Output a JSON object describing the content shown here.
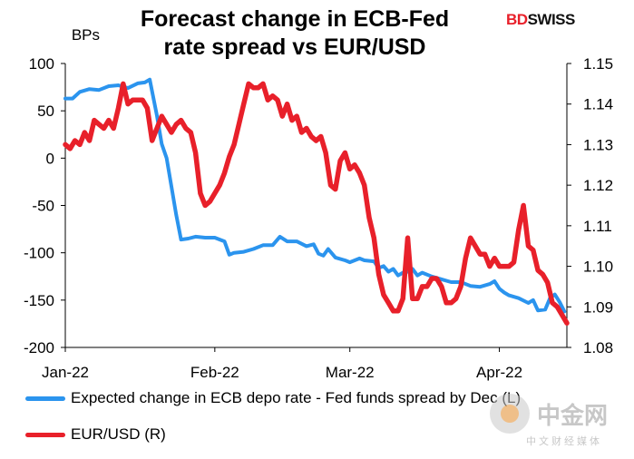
{
  "brand": {
    "logo_bd": "BD",
    "logo_swiss": "SWISS"
  },
  "watermark": {
    "main": "中金网",
    "sub": "中文财经媒体"
  },
  "chart_data": {
    "type": "line",
    "title_lines": [
      "Forecast change in ECB-Fed",
      "rate spread vs EUR/USD"
    ],
    "y_left": {
      "label": "BPs",
      "min": -200,
      "max": 100,
      "ticks": [
        100,
        50,
        0,
        -50,
        -100,
        -150,
        -200
      ]
    },
    "y_right": {
      "min": 1.08,
      "max": 1.15,
      "ticks": [
        "1.15",
        "1.14",
        "1.13",
        "1.12",
        "1.11",
        "1.10",
        "1.09",
        "1.08"
      ]
    },
    "x_axis": {
      "min": 0,
      "max": 104,
      "ticks": [
        {
          "label": "Jan-22",
          "day": 0
        },
        {
          "label": "Feb-22",
          "day": 31
        },
        {
          "label": "Mar-22",
          "day": 59
        },
        {
          "label": "Apr-22",
          "day": 90
        }
      ]
    },
    "series": [
      {
        "name": "Expected change in ECB depo rate - Fed funds spread by Dec (L)",
        "axis": "left",
        "color": "#2b94ee",
        "points": [
          [
            0,
            63
          ],
          [
            1.5,
            63
          ],
          [
            3,
            70
          ],
          [
            5,
            73
          ],
          [
            7,
            72
          ],
          [
            9,
            76
          ],
          [
            11,
            77
          ],
          [
            13,
            74
          ],
          [
            15,
            79
          ],
          [
            16.5,
            80
          ],
          [
            17.5,
            83
          ],
          [
            19,
            45
          ],
          [
            20,
            15
          ],
          [
            21,
            0
          ],
          [
            22,
            -30
          ],
          [
            23,
            -60
          ],
          [
            24,
            -86
          ],
          [
            25.5,
            -85
          ],
          [
            27,
            -83
          ],
          [
            29,
            -84
          ],
          [
            31,
            -84
          ],
          [
            33,
            -88
          ],
          [
            34,
            -102
          ],
          [
            35,
            -100
          ],
          [
            37,
            -99
          ],
          [
            39,
            -96
          ],
          [
            41,
            -92
          ],
          [
            43,
            -92
          ],
          [
            44.5,
            -83
          ],
          [
            46,
            -88
          ],
          [
            48,
            -88
          ],
          [
            50,
            -93
          ],
          [
            51.5,
            -91
          ],
          [
            52.5,
            -101
          ],
          [
            53.5,
            -103
          ],
          [
            54.5,
            -96
          ],
          [
            56,
            -105
          ],
          [
            58,
            -108
          ],
          [
            59,
            -110
          ],
          [
            61,
            -106
          ],
          [
            62,
            -108
          ],
          [
            64,
            -109
          ],
          [
            65,
            -116
          ],
          [
            66,
            -114
          ],
          [
            67,
            -120
          ],
          [
            68,
            -117
          ],
          [
            69,
            -124
          ],
          [
            70,
            -121
          ],
          [
            71,
            -120
          ],
          [
            72,
            -117
          ],
          [
            73,
            -124
          ],
          [
            74,
            -121
          ],
          [
            76,
            -125
          ],
          [
            78,
            -128
          ],
          [
            80,
            -131
          ],
          [
            82,
            -131
          ],
          [
            84,
            -135
          ],
          [
            86,
            -136
          ],
          [
            88,
            -133
          ],
          [
            89,
            -130
          ],
          [
            90,
            -138
          ],
          [
            91,
            -142
          ],
          [
            92,
            -145
          ],
          [
            94,
            -148
          ],
          [
            96,
            -153
          ],
          [
            97,
            -150
          ],
          [
            98,
            -161
          ],
          [
            99.5,
            -160
          ],
          [
            100.5,
            -148
          ],
          [
            101.5,
            -144
          ],
          [
            102.5,
            -152
          ],
          [
            103.5,
            -162
          ]
        ]
      },
      {
        "name": "EUR/USD (R)",
        "axis": "right",
        "color": "#e8202a",
        "points": [
          [
            0,
            1.13
          ],
          [
            1,
            1.129
          ],
          [
            2,
            1.131
          ],
          [
            3,
            1.13
          ],
          [
            4,
            1.133
          ],
          [
            5,
            1.131
          ],
          [
            6,
            1.136
          ],
          [
            7,
            1.135
          ],
          [
            8,
            1.134
          ],
          [
            9,
            1.136
          ],
          [
            10,
            1.134
          ],
          [
            11,
            1.139
          ],
          [
            12,
            1.145
          ],
          [
            13,
            1.14
          ],
          [
            14,
            1.141
          ],
          [
            15,
            1.141
          ],
          [
            16,
            1.141
          ],
          [
            17,
            1.139
          ],
          [
            18,
            1.131
          ],
          [
            19,
            1.134
          ],
          [
            20,
            1.137
          ],
          [
            21,
            1.135
          ],
          [
            22,
            1.133
          ],
          [
            23,
            1.135
          ],
          [
            24,
            1.136
          ],
          [
            25,
            1.134
          ],
          [
            26,
            1.133
          ],
          [
            27,
            1.128
          ],
          [
            28,
            1.118
          ],
          [
            29,
            1.115
          ],
          [
            30,
            1.116
          ],
          [
            31,
            1.118
          ],
          [
            32,
            1.12
          ],
          [
            33,
            1.123
          ],
          [
            34,
            1.127
          ],
          [
            35,
            1.13
          ],
          [
            36,
            1.135
          ],
          [
            37,
            1.14
          ],
          [
            38,
            1.145
          ],
          [
            39,
            1.144
          ],
          [
            40,
            1.144
          ],
          [
            41,
            1.145
          ],
          [
            42,
            1.141
          ],
          [
            43,
            1.142
          ],
          [
            44,
            1.141
          ],
          [
            45,
            1.137
          ],
          [
            46,
            1.14
          ],
          [
            47,
            1.136
          ],
          [
            48,
            1.137
          ],
          [
            49,
            1.133
          ],
          [
            50,
            1.134
          ],
          [
            51,
            1.132
          ],
          [
            52,
            1.131
          ],
          [
            53,
            1.132
          ],
          [
            54,
            1.128
          ],
          [
            55,
            1.12
          ],
          [
            56,
            1.119
          ],
          [
            57,
            1.126
          ],
          [
            58,
            1.128
          ],
          [
            59,
            1.124
          ],
          [
            60,
            1.125
          ],
          [
            61,
            1.123
          ],
          [
            62,
            1.12
          ],
          [
            63,
            1.112
          ],
          [
            64,
            1.107
          ],
          [
            65,
            1.098
          ],
          [
            66,
            1.093
          ],
          [
            67,
            1.091
          ],
          [
            68,
            1.089
          ],
          [
            69,
            1.089
          ],
          [
            70,
            1.092
          ],
          [
            71,
            1.107
          ],
          [
            72,
            1.092
          ],
          [
            73,
            1.092
          ],
          [
            74,
            1.095
          ],
          [
            75,
            1.095
          ],
          [
            76,
            1.097
          ],
          [
            77,
            1.097
          ],
          [
            78,
            1.095
          ],
          [
            79,
            1.091
          ],
          [
            80,
            1.091
          ],
          [
            81,
            1.092
          ],
          [
            82,
            1.095
          ],
          [
            83,
            1.102
          ],
          [
            84,
            1.107
          ],
          [
            85,
            1.105
          ],
          [
            86,
            1.103
          ],
          [
            87,
            1.103
          ],
          [
            88,
            1.1
          ],
          [
            89,
            1.102
          ],
          [
            90,
            1.1
          ],
          [
            91,
            1.1
          ],
          [
            92,
            1.1
          ],
          [
            93,
            1.101
          ],
          [
            94,
            1.109
          ],
          [
            95,
            1.115
          ],
          [
            96,
            1.105
          ],
          [
            97,
            1.104
          ],
          [
            98,
            1.099
          ],
          [
            99,
            1.098
          ],
          [
            100,
            1.096
          ],
          [
            101,
            1.091
          ],
          [
            102,
            1.09
          ],
          [
            103,
            1.088
          ],
          [
            104,
            1.086
          ]
        ]
      }
    ],
    "legend": [
      "Expected change in ECB depo rate - Fed funds spread by Dec (L)",
      "EUR/USD (R)"
    ],
    "grid": false,
    "legend_position": "bottom-left"
  }
}
